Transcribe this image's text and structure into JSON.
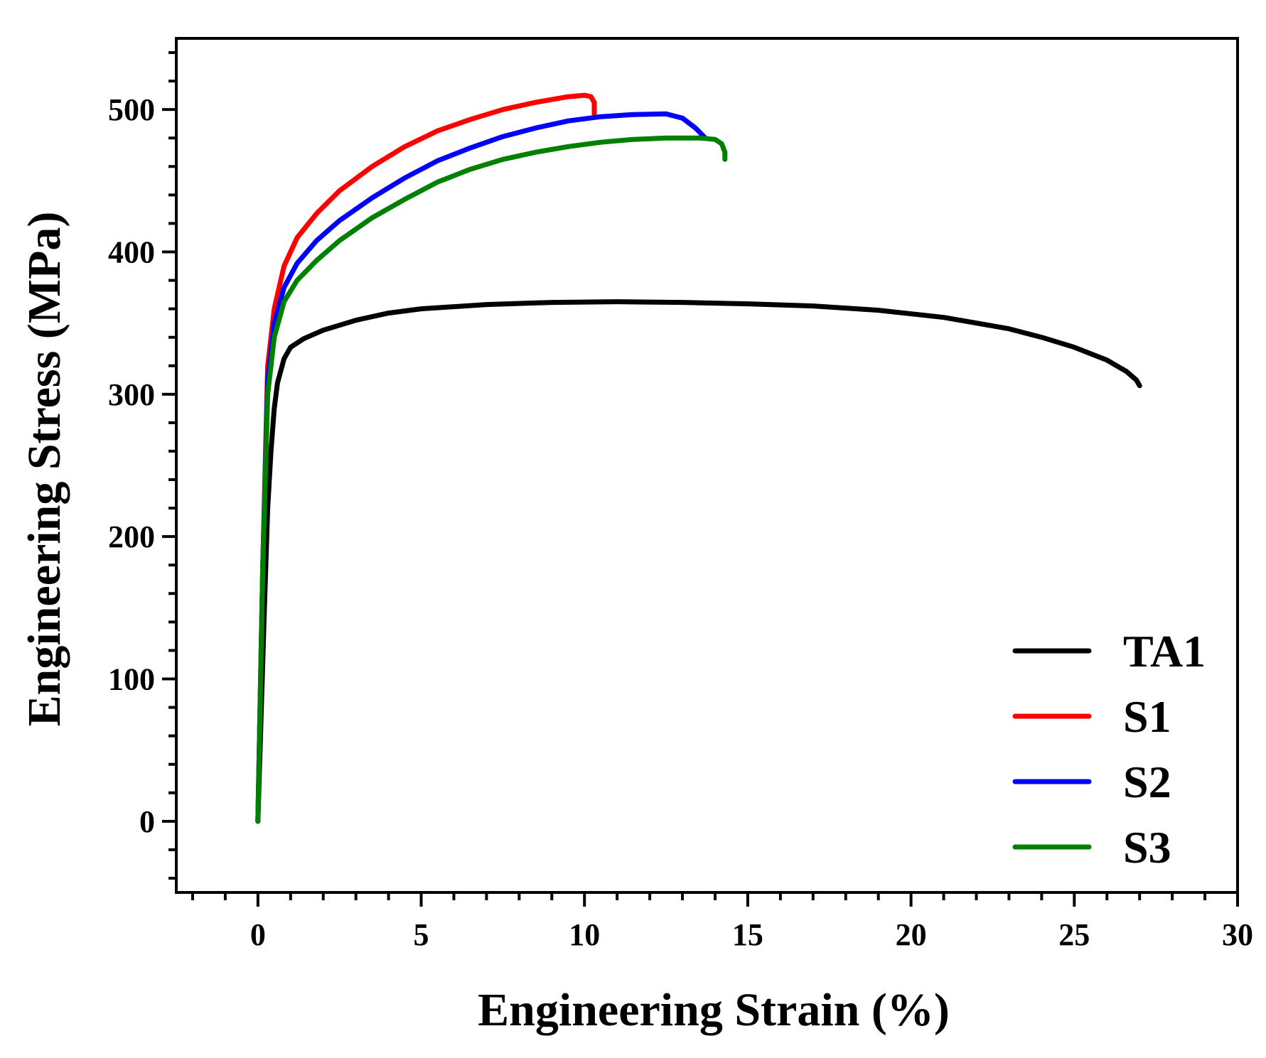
{
  "chart_data": {
    "type": "line",
    "title": "",
    "xlabel": "Engineering Strain (%)",
    "ylabel": "Engineering Stress (MPa)",
    "xlim": [
      -2.5,
      30
    ],
    "ylim": [
      -50,
      550
    ],
    "xticks": [
      0,
      5,
      10,
      15,
      20,
      25,
      30
    ],
    "yticks": [
      0,
      100,
      200,
      300,
      400,
      500
    ],
    "xtick_labels": [
      "0",
      "5",
      "10",
      "15",
      "20",
      "25",
      "30"
    ],
    "ytick_labels": [
      "0",
      "100",
      "200",
      "300",
      "400",
      "500"
    ],
    "x_minor_step": 1,
    "y_minor_step": 20,
    "grid": false,
    "legend_position": "bottom-right",
    "series": [
      {
        "name": "TA1",
        "color": "#000000",
        "x": [
          0,
          0.2,
          0.3,
          0.4,
          0.5,
          0.6,
          0.8,
          1.0,
          1.4,
          2,
          3,
          4,
          5,
          7,
          9,
          11,
          13,
          15,
          17,
          19,
          21,
          23,
          24,
          25,
          26,
          26.6,
          26.9,
          27.0
        ],
        "y": [
          0,
          150,
          220,
          260,
          290,
          308,
          325,
          333,
          339,
          345,
          352,
          357,
          360,
          363,
          364.5,
          365,
          364.5,
          363.5,
          362,
          359,
          354,
          346,
          340,
          333,
          324,
          316,
          310,
          306
        ]
      },
      {
        "name": "S1",
        "color": "#ff0000",
        "x": [
          0,
          0.15,
          0.3,
          0.5,
          0.8,
          1.2,
          1.8,
          2.5,
          3.5,
          4.5,
          5.5,
          6.5,
          7.5,
          8.5,
          9.5,
          10.0,
          10.2,
          10.3,
          10.3
        ],
        "y": [
          0,
          180,
          320,
          360,
          390,
          410,
          427,
          443,
          460,
          474,
          485,
          493,
          500,
          505,
          509,
          510,
          509,
          505,
          497
        ]
      },
      {
        "name": "S2",
        "color": "#0000ff",
        "x": [
          0,
          0.15,
          0.3,
          0.5,
          0.8,
          1.2,
          1.8,
          2.5,
          3.5,
          4.5,
          5.5,
          6.5,
          7.5,
          8.5,
          9.5,
          10.5,
          11.5,
          12.5,
          13.0,
          13.4,
          13.7
        ],
        "y": [
          0,
          180,
          310,
          350,
          375,
          392,
          408,
          422,
          438,
          452,
          464,
          473,
          481,
          487,
          492,
          495,
          496.5,
          497,
          494,
          487,
          480
        ]
      },
      {
        "name": "S3",
        "color": "#008000",
        "x": [
          0,
          0.15,
          0.3,
          0.5,
          0.8,
          1.2,
          1.8,
          2.5,
          3.5,
          4.5,
          5.5,
          6.5,
          7.5,
          8.5,
          9.5,
          10.5,
          11.5,
          12.5,
          13.5,
          14.0,
          14.2,
          14.3,
          14.3
        ],
        "y": [
          0,
          180,
          300,
          340,
          365,
          380,
          394,
          408,
          424,
          437,
          449,
          458,
          465,
          470,
          474,
          477,
          479,
          480,
          480,
          479,
          476,
          470,
          465
        ]
      }
    ]
  }
}
